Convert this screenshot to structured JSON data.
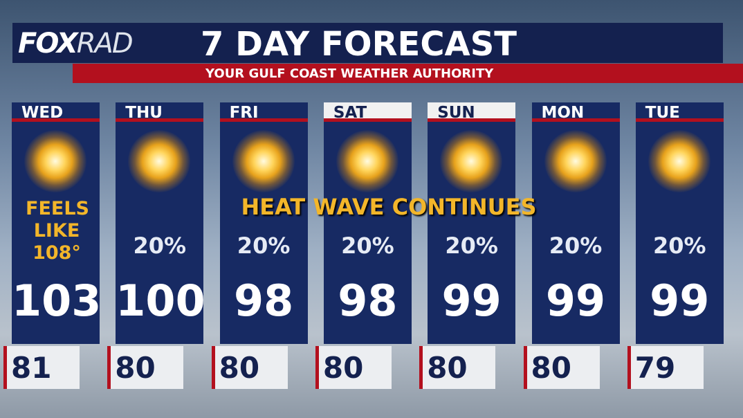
{
  "header": {
    "logo_fox": "FOX",
    "logo_rad": "RAD",
    "title": "7 DAY FORECAST",
    "subtitle": "YOUR GULF COAST WEATHER AUTHORITY"
  },
  "banner": "HEAT WAVE CONTINUES",
  "days": [
    {
      "name": "WED",
      "feels_like": "FEELS LIKE 108°",
      "high": 103,
      "low": 81
    },
    {
      "name": "THU",
      "precip": "20%",
      "high": 100,
      "low": 80
    },
    {
      "name": "FRI",
      "precip": "20%",
      "high": 98,
      "low": 80
    },
    {
      "name": "SAT",
      "precip": "20%",
      "high": 98,
      "low": 80,
      "highlight": true
    },
    {
      "name": "SUN",
      "precip": "20%",
      "high": 99,
      "low": 80,
      "highlight": true
    },
    {
      "name": "MON",
      "precip": "20%",
      "high": 99,
      "low": 80
    },
    {
      "name": "TUE",
      "precip": "20%",
      "high": 99,
      "low": 79
    }
  ]
}
